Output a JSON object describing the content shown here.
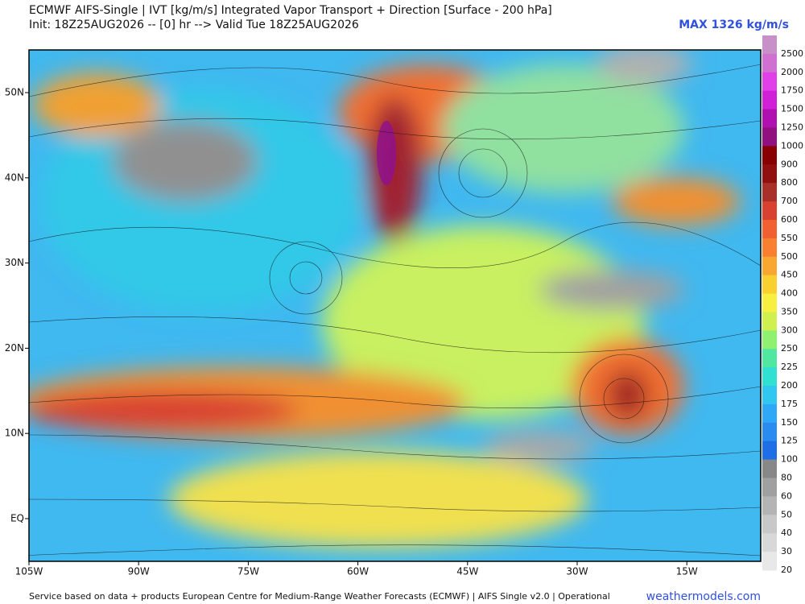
{
  "header": {
    "title": "ECMWF AIFS-Single | IVT [kg/m/s] Integrated Vapor Transport + Direction [Surface - 200 hPa]",
    "subtitle": "Init: 18Z25AUG2026 -- [0] hr --> Valid Tue 18Z25AUG2026",
    "max_label": "MAX 1326 kg/m/s"
  },
  "map": {
    "lat_labels": [
      "50N",
      "40N",
      "30N",
      "20N",
      "10N",
      "EQ"
    ],
    "lon_labels": [
      "105W",
      "90W",
      "75W",
      "60W",
      "45W",
      "30W",
      "15W"
    ]
  },
  "colorbar": {
    "labels": [
      "2500",
      "2000",
      "1750",
      "1500",
      "1250",
      "1000",
      "900",
      "800",
      "700",
      "600",
      "550",
      "500",
      "450",
      "400",
      "350",
      "300",
      "250",
      "225",
      "200",
      "175",
      "150",
      "125",
      "100",
      "80",
      "60",
      "50",
      "40",
      "30",
      "20"
    ],
    "colors": [
      "#c890c8",
      "#d070d0",
      "#e040e8",
      "#d020d8",
      "#b010b0",
      "#901080",
      "#880000",
      "#901010",
      "#a83028",
      "#d84030",
      "#f06030",
      "#f88030",
      "#f8a830",
      "#f8d030",
      "#f8f040",
      "#d0f050",
      "#90f070",
      "#50e8a0",
      "#30e0d0",
      "#30c8f0",
      "#30a8f8",
      "#2a8cf0",
      "#1e6ee8",
      "#888888",
      "#a0a0a0",
      "#b4b4b4",
      "#c8c8c8",
      "#d8d8d8",
      "#e8e8e8"
    ]
  },
  "footer": {
    "credit": "Service based on data + products European Centre for Medium-Range Weather Forecasts (ECMWF) | AIFS Single v2.0 | Operational",
    "site": "weathermodels.com"
  }
}
